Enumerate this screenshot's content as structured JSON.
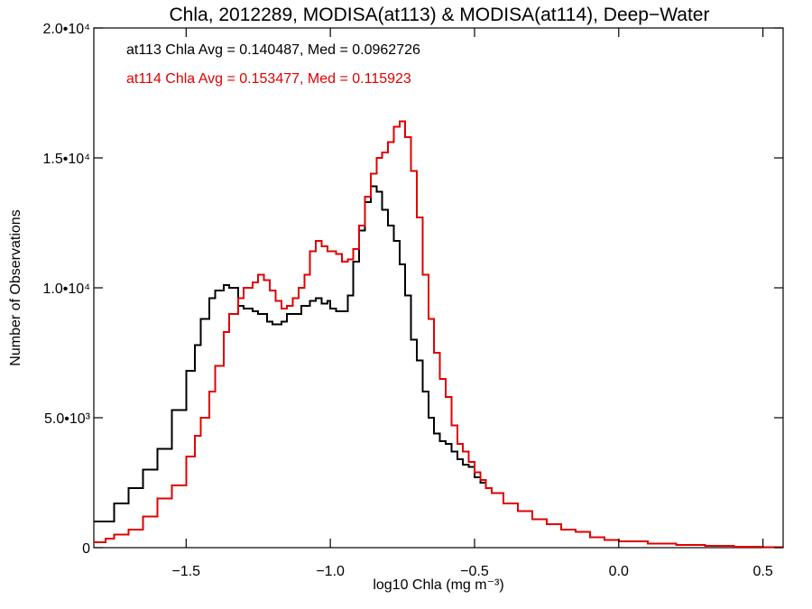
{
  "chart_data": {
    "type": "line",
    "step": true,
    "title": "Chla, 2012289, MODISA(at113) & MODISA(at114), Deep−Water",
    "xlabel": "log10 Chla (mg m⁻³)",
    "ylabel": "Number of Observations",
    "xlim": [
      -1.82,
      0.57
    ],
    "ylim": [
      0,
      20000
    ],
    "x_ticks": [
      -1.5,
      -1.0,
      -0.5,
      0.0,
      0.5
    ],
    "x_tick_labels": [
      "−1.5",
      "−1.0",
      "−0.5",
      "0.0",
      "0.5"
    ],
    "y_ticks": [
      0,
      5000,
      10000,
      15000,
      20000
    ],
    "y_tick_labels": [
      "0",
      "5.0•10³",
      "1.0•10⁴",
      "1.5•10⁴",
      "2.0•10⁴"
    ],
    "grid": false,
    "annotations": [
      {
        "text": "at113 Chla Avg = 0.140487, Med = 0.0962726",
        "color": "#000000"
      },
      {
        "text": "at114 Chla Avg = 0.153477, Med = 0.115923",
        "color": "#e00000"
      }
    ],
    "series": [
      {
        "color": "#000000",
        "x": [
          -1.82,
          -1.75,
          -1.7,
          -1.65,
          -1.6,
          -1.55,
          -1.5,
          -1.47,
          -1.45,
          -1.42,
          -1.4,
          -1.37,
          -1.35,
          -1.32,
          -1.3,
          -1.27,
          -1.25,
          -1.22,
          -1.2,
          -1.17,
          -1.15,
          -1.12,
          -1.1,
          -1.07,
          -1.05,
          -1.03,
          -1.01,
          -1.0,
          -0.98,
          -0.96,
          -0.94,
          -0.92,
          -0.9,
          -0.88,
          -0.86,
          -0.84,
          -0.82,
          -0.8,
          -0.78,
          -0.76,
          -0.74,
          -0.72,
          -0.7,
          -0.68,
          -0.66,
          -0.64,
          -0.62,
          -0.6,
          -0.58,
          -0.56,
          -0.54,
          -0.52,
          -0.5,
          -0.48,
          -0.46,
          -0.44,
          -0.4,
          -0.35,
          -0.3,
          -0.25,
          -0.2,
          -0.15,
          -0.1,
          -0.05,
          0.0,
          0.1,
          0.2,
          0.3,
          0.4,
          0.5,
          0.57
        ],
        "values": [
          1000,
          1700,
          2300,
          3000,
          3800,
          5300,
          6800,
          7800,
          8800,
          9600,
          9900,
          10100,
          10000,
          9300,
          9200,
          9100,
          9000,
          8700,
          8600,
          8700,
          9000,
          9000,
          9300,
          9500,
          9600,
          9400,
          9500,
          9200,
          9100,
          9100,
          9700,
          11000,
          12200,
          13300,
          13900,
          13700,
          13000,
          12400,
          11800,
          10900,
          9700,
          8000,
          7200,
          6000,
          5000,
          4400,
          4100,
          4000,
          3700,
          3400,
          3200,
          3100,
          2700,
          2500,
          2300,
          2100,
          1700,
          1400,
          1100,
          900,
          700,
          600,
          400,
          300,
          250,
          150,
          100,
          70,
          40,
          20,
          10
        ]
      },
      {
        "color": "#e00000",
        "x": [
          -1.82,
          -1.78,
          -1.75,
          -1.7,
          -1.65,
          -1.6,
          -1.55,
          -1.5,
          -1.47,
          -1.45,
          -1.42,
          -1.4,
          -1.37,
          -1.35,
          -1.32,
          -1.3,
          -1.27,
          -1.25,
          -1.23,
          -1.21,
          -1.19,
          -1.17,
          -1.15,
          -1.13,
          -1.11,
          -1.09,
          -1.07,
          -1.05,
          -1.03,
          -1.01,
          -1.0,
          -0.98,
          -0.96,
          -0.94,
          -0.92,
          -0.9,
          -0.88,
          -0.86,
          -0.84,
          -0.82,
          -0.8,
          -0.78,
          -0.76,
          -0.74,
          -0.72,
          -0.7,
          -0.68,
          -0.66,
          -0.64,
          -0.62,
          -0.6,
          -0.58,
          -0.56,
          -0.54,
          -0.52,
          -0.5,
          -0.48,
          -0.46,
          -0.44,
          -0.4,
          -0.35,
          -0.3,
          -0.25,
          -0.2,
          -0.15,
          -0.1,
          -0.05,
          0.0,
          0.1,
          0.2,
          0.3,
          0.4,
          0.5,
          0.57
        ],
        "values": [
          200,
          350,
          500,
          700,
          1200,
          1900,
          2400,
          3500,
          4300,
          5000,
          6000,
          7000,
          8300,
          9000,
          9600,
          10000,
          10200,
          10500,
          10300,
          9900,
          9500,
          9200,
          9300,
          9600,
          10000,
          10500,
          11400,
          11800,
          11600,
          11400,
          11400,
          11300,
          11000,
          11100,
          11500,
          12400,
          13500,
          14400,
          15000,
          15200,
          15600,
          16200,
          16400,
          15800,
          14500,
          12700,
          10500,
          8800,
          7500,
          6500,
          5800,
          4700,
          4000,
          3700,
          3300,
          2900,
          2600,
          2300,
          2100,
          1700,
          1400,
          1100,
          900,
          700,
          600,
          400,
          300,
          250,
          150,
          100,
          70,
          40,
          20,
          10
        ]
      }
    ]
  }
}
